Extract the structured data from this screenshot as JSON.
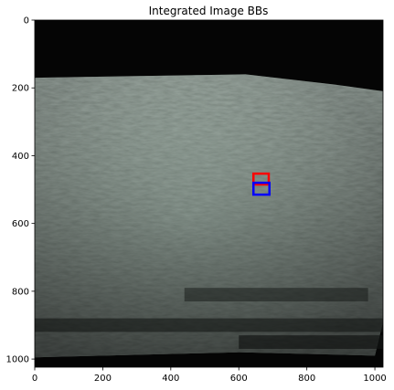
{
  "chart_data": {
    "type": "image",
    "title": "Integrated Image BBs",
    "xlabel": "",
    "ylabel": "",
    "xlim": [
      0,
      1024
    ],
    "ylim": [
      1024,
      0
    ],
    "x_ticks": [
      0,
      200,
      400,
      600,
      800,
      1000
    ],
    "y_ticks": [
      0,
      200,
      400,
      600,
      800,
      1000
    ],
    "grid": false,
    "image_width": 1024,
    "image_height": 1024,
    "bounding_boxes": [
      {
        "color": "#ff0000",
        "x0": 643,
        "y0": 453,
        "x1": 688,
        "y1": 485
      },
      {
        "color": "#0000ff",
        "x0": 643,
        "y0": 480,
        "x1": 690,
        "y1": 515
      }
    ]
  }
}
